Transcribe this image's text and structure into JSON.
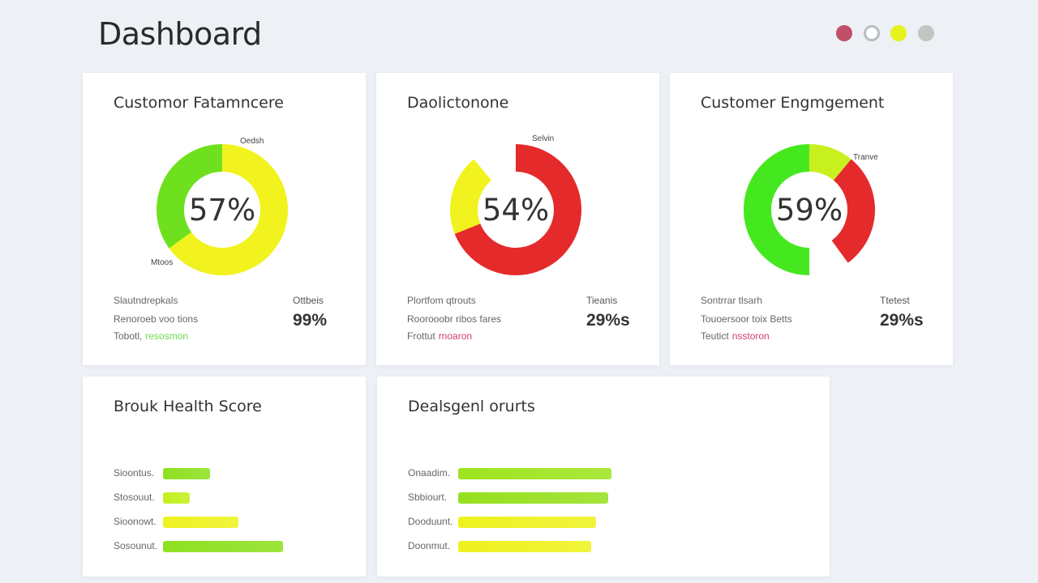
{
  "header": {
    "title": "Dashboard",
    "dots": [
      {
        "name": "red",
        "color": "#c0506a",
        "ring": false
      },
      {
        "name": "grey-ring",
        "color": "#b9bdbf",
        "ring": true
      },
      {
        "name": "yellow",
        "color": "#e6f21c",
        "ring": false
      },
      {
        "name": "grey",
        "color": "#c2c6c3",
        "ring": false
      }
    ]
  },
  "cards": [
    {
      "title": "Customor Fatamncere",
      "percent": "57%",
      "label_a": "Oedsh",
      "label_b": "Mtoos",
      "segments": [
        {
          "from": 0,
          "to": 0.65,
          "color": "#f2f21e"
        },
        {
          "from": 0.65,
          "to": 1,
          "color": "#6fe01e"
        }
      ],
      "stat1": "Slautndrepkals",
      "stat2": "Renoroeb voo tions",
      "stat3_label": "Tobotl,",
      "stat3_value": "resosmon",
      "stat3_color": "#6ad84a",
      "side_label": "Ottbeis",
      "side_value": "99%"
    },
    {
      "title": "Daolictonone",
      "percent": "54%",
      "label_a": "Selvin",
      "label_b": "",
      "segments": [
        {
          "from": 0,
          "to": 0.69,
          "color": "#e42a2a"
        },
        {
          "from": 0.69,
          "to": 0.89,
          "color": "#f2f21e"
        }
      ],
      "stat1": "Plortfom qtrouts",
      "stat2": "Roorooobr ribos fares",
      "stat3_label": "Frottut",
      "stat3_value": "rnoaron",
      "stat3_color": "#d0406a",
      "side_label": "Tieanis",
      "side_value": "29%s"
    },
    {
      "title": "Customer Engmgement",
      "percent": "59%",
      "label_a": "Tranve",
      "label_b": "",
      "segments": [
        {
          "from": 0,
          "to": 0.11,
          "color": "#c8f01e"
        },
        {
          "from": 0.11,
          "to": 0.4,
          "color": "#e42a2a"
        },
        {
          "from": 0.5,
          "to": 1,
          "color": "#45e81e"
        }
      ],
      "stat1": "Sontrrar tlsarh",
      "stat2": "Touoersoor toix Betts",
      "stat3_label": "Teutict",
      "stat3_value": "nsstoron",
      "stat3_color": "#d0406a",
      "side_label": "Ttetest",
      "side_value": "29%s"
    }
  ],
  "health": {
    "title": "Brouk Health Score",
    "bars": [
      {
        "label": "Sioontus.",
        "value": 23,
        "color": "#8ee020"
      },
      {
        "label": "Stosouut.",
        "value": 13,
        "color": "#c2f01e"
      },
      {
        "label": "Sioonowt.",
        "value": 37,
        "color": "#eef21e"
      },
      {
        "label": "Sosounut.",
        "value": 59,
        "color": "#8ee020"
      }
    ]
  },
  "deals": {
    "title": "Dealsgenl orurts",
    "bars": [
      {
        "label": "Onaadim.",
        "value": 100,
        "color": "#9ee41e"
      },
      {
        "label": "Sbbiourt.",
        "value": 98,
        "color": "#96e01e"
      },
      {
        "label": "Dooduunt.",
        "value": 90,
        "color": "#eef21e"
      },
      {
        "label": "Doonmut.",
        "value": 87,
        "color": "#eef21e"
      }
    ]
  }
}
